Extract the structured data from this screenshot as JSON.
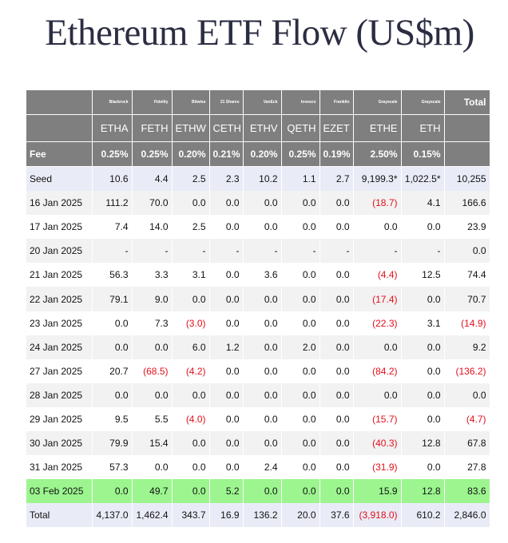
{
  "title": "Ethereum ETF Flow (US$m)",
  "colors": {
    "header_bg": "#7f7f7f",
    "negative": "#e3101b",
    "highlight": "#9cf58f",
    "band": "#e9ecf6",
    "stripe": "#f2f2f2"
  },
  "header": {
    "issuers": [
      "Blackrock",
      "Fidelity",
      "Bitwise",
      "21 Shares",
      "VanEck",
      "Invesco",
      "Franklin",
      "Grayscale",
      "Grayscale"
    ],
    "total_label": "Total",
    "tickers": [
      "ETHA",
      "FETH",
      "ETHW",
      "CETH",
      "ETHV",
      "QETH",
      "EZET",
      "ETHE",
      "ETH"
    ],
    "fee_label": "Fee",
    "fees": [
      "0.25%",
      "0.25%",
      "0.20%",
      "0.21%",
      "0.20%",
      "0.25%",
      "0.19%",
      "2.50%",
      "0.15%"
    ]
  },
  "rows": [
    {
      "label": "Seed",
      "values": [
        "10.6",
        "4.4",
        "2.5",
        "2.3",
        "10.2",
        "1.1",
        "2.7",
        "9,199.3*",
        "1,022.5*",
        "10,255"
      ]
    },
    {
      "label": "16 Jan 2025",
      "values": [
        "111.2",
        "70.0",
        "0.0",
        "0.0",
        "0.0",
        "0.0",
        "0.0",
        "(18.7)",
        "4.1",
        "166.6"
      ]
    },
    {
      "label": "17 Jan 2025",
      "values": [
        "7.4",
        "14.0",
        "2.5",
        "0.0",
        "0.0",
        "0.0",
        "0.0",
        "0.0",
        "0.0",
        "23.9"
      ]
    },
    {
      "label": "20 Jan 2025",
      "values": [
        "-",
        "-",
        "-",
        "-",
        "-",
        "-",
        "-",
        "-",
        "-",
        "0.0"
      ]
    },
    {
      "label": "21 Jan 2025",
      "values": [
        "56.3",
        "3.3",
        "3.1",
        "0.0",
        "3.6",
        "0.0",
        "0.0",
        "(4.4)",
        "12.5",
        "74.4"
      ]
    },
    {
      "label": "22 Jan 2025",
      "values": [
        "79.1",
        "9.0",
        "0.0",
        "0.0",
        "0.0",
        "0.0",
        "0.0",
        "(17.4)",
        "0.0",
        "70.7"
      ]
    },
    {
      "label": "23 Jan 2025",
      "values": [
        "0.0",
        "7.3",
        "(3.0)",
        "0.0",
        "0.0",
        "0.0",
        "0.0",
        "(22.3)",
        "3.1",
        "(14.9)"
      ]
    },
    {
      "label": "24 Jan 2025",
      "values": [
        "0.0",
        "0.0",
        "6.0",
        "1.2",
        "0.0",
        "2.0",
        "0.0",
        "0.0",
        "0.0",
        "9.2"
      ]
    },
    {
      "label": "27 Jan 2025",
      "values": [
        "20.7",
        "(68.5)",
        "(4.2)",
        "0.0",
        "0.0",
        "0.0",
        "0.0",
        "(84.2)",
        "0.0",
        "(136.2)"
      ]
    },
    {
      "label": "28 Jan 2025",
      "values": [
        "0.0",
        "0.0",
        "0.0",
        "0.0",
        "0.0",
        "0.0",
        "0.0",
        "0.0",
        "0.0",
        "0.0"
      ]
    },
    {
      "label": "29 Jan 2025",
      "values": [
        "9.5",
        "5.5",
        "(4.0)",
        "0.0",
        "0.0",
        "0.0",
        "0.0",
        "(15.7)",
        "0.0",
        "(4.7)"
      ]
    },
    {
      "label": "30 Jan 2025",
      "values": [
        "79.9",
        "15.4",
        "0.0",
        "0.0",
        "0.0",
        "0.0",
        "0.0",
        "(40.3)",
        "12.8",
        "67.8"
      ]
    },
    {
      "label": "31 Jan 2025",
      "values": [
        "57.3",
        "0.0",
        "0.0",
        "0.0",
        "2.4",
        "0.0",
        "0.0",
        "(31.9)",
        "0.0",
        "27.8"
      ]
    },
    {
      "label": "03 Feb 2025",
      "values": [
        "0.0",
        "49.7",
        "0.0",
        "5.2",
        "0.0",
        "0.0",
        "0.0",
        "15.9",
        "12.8",
        "83.6"
      ],
      "highlight": true
    },
    {
      "label": "Total",
      "values": [
        "4,137.0",
        "1,462.4",
        "343.7",
        "16.9",
        "136.2",
        "20.0",
        "37.6",
        "(3,918.0)",
        "610.2",
        "2,846.0"
      ],
      "total": true
    }
  ]
}
